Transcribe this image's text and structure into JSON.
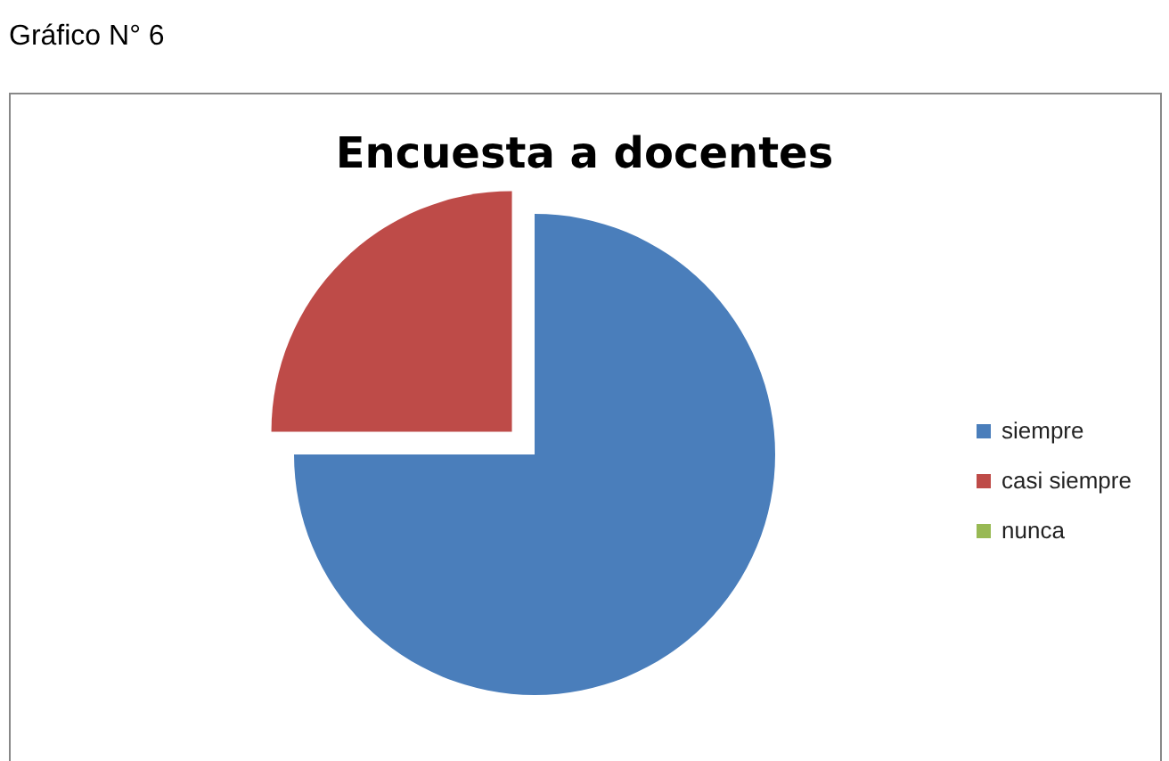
{
  "chart_data": {
    "type": "pie",
    "title": "Encuesta a docentes",
    "annotations": [
      "Gráfico N° 6"
    ],
    "categories": [
      "siempre",
      "casi siempre",
      "nunca"
    ],
    "values": [
      75,
      25,
      0
    ],
    "colors": [
      "#4a7ebb",
      "#be4b48",
      "#98b954"
    ],
    "legend": "right"
  }
}
